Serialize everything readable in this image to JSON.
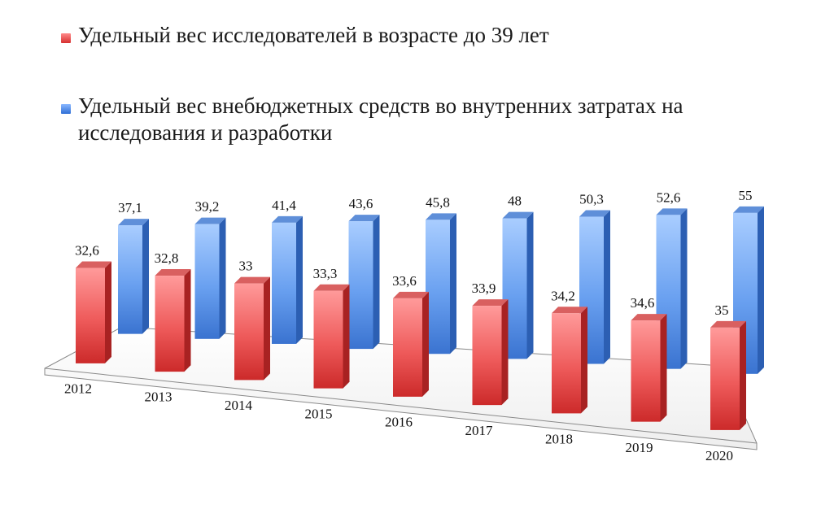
{
  "chart_data": {
    "type": "bar",
    "categories": [
      "2012",
      "2013",
      "2014",
      "2015",
      "2016",
      "2017",
      "2018",
      "2019",
      "2020"
    ],
    "series": [
      {
        "name": "Удельный вес исследователей в возрасте до 39 лет",
        "color": "#e84a4a",
        "values": [
          32.6,
          32.8,
          33,
          33.3,
          33.6,
          33.9,
          34.2,
          34.6,
          35
        ],
        "labels": [
          "32,6",
          "32,8",
          "33",
          "33,3",
          "33,6",
          "33,9",
          "34,2",
          "34,6",
          "35"
        ]
      },
      {
        "name": "Удельный вес внебюджетных средств во внутренних затратах на исследования и разработки",
        "color": "#4a86e0",
        "values": [
          37.1,
          39.2,
          41.4,
          43.6,
          45.8,
          48,
          50.3,
          52.6,
          55
        ],
        "labels": [
          "37,1",
          "39,2",
          "41,4",
          "43,6",
          "45,8",
          "48",
          "50,3",
          "52,6",
          "55"
        ]
      }
    ],
    "legend_position": "top",
    "grid": false
  }
}
